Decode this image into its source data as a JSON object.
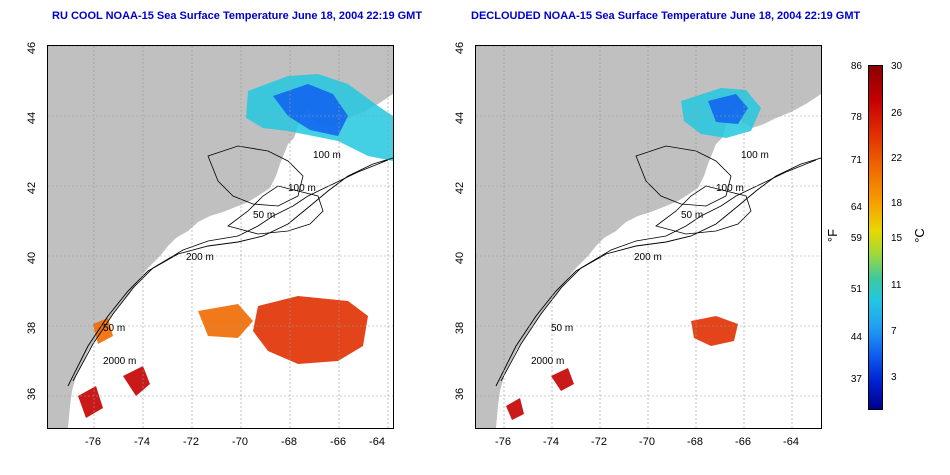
{
  "titles": {
    "left": "RU COOL NOAA-15 Sea Surface Temperature June 18, 2004 22:19 GMT",
    "right": "DECLOUDED NOAA-15 Sea Surface Temperature June 18, 2004 22:19 GMT"
  },
  "map": {
    "x_ticks": [
      "-76",
      "-74",
      "-72",
      "-70",
      "-68",
      "-66",
      "-64"
    ],
    "y_ticks": [
      "46",
      "44",
      "42",
      "40",
      "38",
      "36"
    ],
    "contour_labels": {
      "left": [
        "100 m",
        "100 m",
        "50 m",
        "200 m",
        "50 m",
        "2000 m"
      ],
      "right": [
        "100 m",
        "100 m",
        "50 m",
        "200 m",
        "50 m",
        "2000 m"
      ]
    },
    "colors": {
      "land": "#c0c0c0",
      "water_bg": "#ffffff",
      "contour": "#000000",
      "grid": "#999999"
    }
  },
  "colorbar": {
    "fahrenheit_ticks": [
      "86",
      "78",
      "71",
      "64",
      "59",
      "51",
      "44",
      "37"
    ],
    "celsius_ticks": [
      "30",
      "26",
      "22",
      "18",
      "15",
      "11",
      "7",
      "3"
    ],
    "fahrenheit_unit": "°F",
    "celsius_unit": "°C"
  }
}
